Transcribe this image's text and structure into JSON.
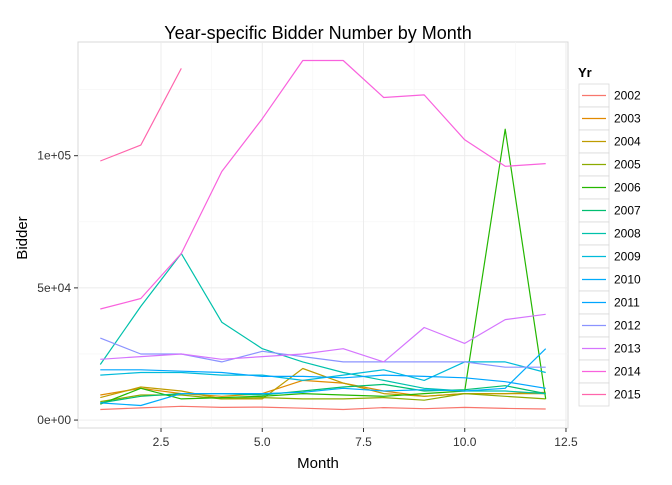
{
  "chart_data": {
    "type": "line",
    "title": "Year-specific Bidder Number by Month",
    "xlabel": "Month",
    "ylabel": "Bidder",
    "xlim": [
      0.45,
      12.55
    ],
    "ylim": [
      -3000,
      143000
    ],
    "x_ticks": [
      2.5,
      5.0,
      7.5,
      10.0,
      12.5
    ],
    "x_tick_labels": [
      "2.5",
      "5.0",
      "7.5",
      "10.0",
      "12.5"
    ],
    "y_ticks": [
      0,
      50000,
      100000
    ],
    "y_tick_labels": [
      "0e+00",
      "5e+04",
      "1e+05"
    ],
    "grid": true,
    "legend": {
      "title": "Yr",
      "placement": "right"
    },
    "series": [
      {
        "name": "2002",
        "color": "#F8766D",
        "x": [
          1,
          2,
          3,
          4,
          5,
          6,
          7,
          8,
          9,
          10,
          11,
          12
        ],
        "y": [
          4000,
          4600,
          5200,
          4800,
          4900,
          4500,
          4000,
          4700,
          4300,
          4800,
          4400,
          4200
        ]
      },
      {
        "name": "2003",
        "color": "#E18A00",
        "x": [
          1,
          2,
          3,
          4,
          5,
          6,
          7,
          8,
          9,
          10,
          11,
          12
        ],
        "y": [
          9500,
          12000,
          10000,
          9000,
          10000,
          15000,
          14000,
          11000,
          9000,
          10000,
          10000,
          10500
        ]
      },
      {
        "name": "2004",
        "color": "#BE9C00",
        "x": [
          1,
          2,
          3,
          4,
          5,
          6,
          7,
          8,
          9,
          10,
          11,
          12
        ],
        "y": [
          8500,
          12500,
          11000,
          8000,
          8000,
          19500,
          14000,
          10000,
          9000,
          10000,
          10000,
          10000
        ]
      },
      {
        "name": "2005",
        "color": "#8CAB00",
        "x": [
          1,
          2,
          3,
          4,
          5,
          6,
          7,
          8,
          9,
          10,
          11,
          12
        ],
        "y": [
          7000,
          9500,
          9500,
          8000,
          8500,
          8000,
          8000,
          8500,
          7500,
          10000,
          9000,
          8000
        ]
      },
      {
        "name": "2006",
        "color": "#24B700",
        "x": [
          1,
          2,
          3,
          4,
          5,
          6,
          7,
          8,
          9,
          10,
          11,
          12
        ],
        "y": [
          6000,
          12000,
          8000,
          8500,
          9000,
          10000,
          9500,
          9000,
          10000,
          11000,
          110000,
          8000
        ]
      },
      {
        "name": "2007",
        "color": "#00BE70",
        "x": [
          1,
          2,
          3,
          4,
          5,
          6,
          7,
          8,
          9,
          10,
          11,
          12
        ],
        "y": [
          6500,
          9000,
          10000,
          10000,
          9500,
          11000,
          12500,
          13500,
          11000,
          11500,
          13000,
          10000
        ]
      },
      {
        "name": "2008",
        "color": "#00C1AB",
        "x": [
          1,
          2,
          3,
          4,
          5,
          6,
          7,
          8,
          9,
          10,
          11,
          12
        ],
        "y": [
          21000,
          43000,
          63000,
          37000,
          27000,
          22000,
          18000,
          15000,
          12000,
          11000,
          11000,
          10000
        ]
      },
      {
        "name": "2009",
        "color": "#00BBDA",
        "x": [
          1,
          2,
          3,
          4,
          5,
          6,
          7,
          8,
          9,
          10,
          11,
          12
        ],
        "y": [
          17000,
          18000,
          18000,
          17000,
          17000,
          15000,
          17000,
          19000,
          15000,
          22000,
          22000,
          18000
        ]
      },
      {
        "name": "2010",
        "color": "#00ACFC",
        "x": [
          1,
          2,
          3,
          4,
          5,
          6,
          7,
          8,
          9,
          10,
          11,
          12
        ],
        "y": [
          6500,
          5500,
          10000,
          10000,
          10000,
          10500,
          12000,
          11000,
          11500,
          11000,
          12000,
          27000
        ]
      },
      {
        "name": "2011",
        "color": "#00A5FF",
        "x": [
          1,
          2,
          3,
          4,
          5,
          6,
          7,
          8,
          9,
          10,
          11,
          12
        ],
        "y": [
          19000,
          19000,
          18500,
          18000,
          16500,
          16500,
          16000,
          17000,
          16500,
          16000,
          14500,
          12000
        ]
      },
      {
        "name": "2012",
        "color": "#8B93FF",
        "x": [
          1,
          2,
          3,
          4,
          5,
          6,
          7,
          8,
          9,
          10,
          11,
          12
        ],
        "y": [
          31000,
          25000,
          25000,
          22000,
          26000,
          24000,
          22000,
          22000,
          22000,
          22000,
          20000,
          20000
        ]
      },
      {
        "name": "2013",
        "color": "#D575FE",
        "x": [
          1,
          2,
          3,
          4,
          5,
          6,
          7,
          8,
          9,
          10,
          11,
          12
        ],
        "y": [
          23000,
          24000,
          25000,
          23000,
          24000,
          25000,
          27000,
          22000,
          35000,
          29000,
          38000,
          40000
        ]
      },
      {
        "name": "2014",
        "color": "#F962DD",
        "x": [
          1,
          2,
          3,
          4,
          5,
          6,
          7,
          8,
          9,
          10,
          11,
          12
        ],
        "y": [
          42000,
          46000,
          63000,
          94000,
          114000,
          136000,
          136000,
          122000,
          123000,
          106000,
          96000,
          97000
        ]
      },
      {
        "name": "2015",
        "color": "#FF65AC",
        "x": [
          1,
          2,
          3
        ],
        "y": [
          98000,
          104000,
          133000
        ]
      }
    ]
  }
}
